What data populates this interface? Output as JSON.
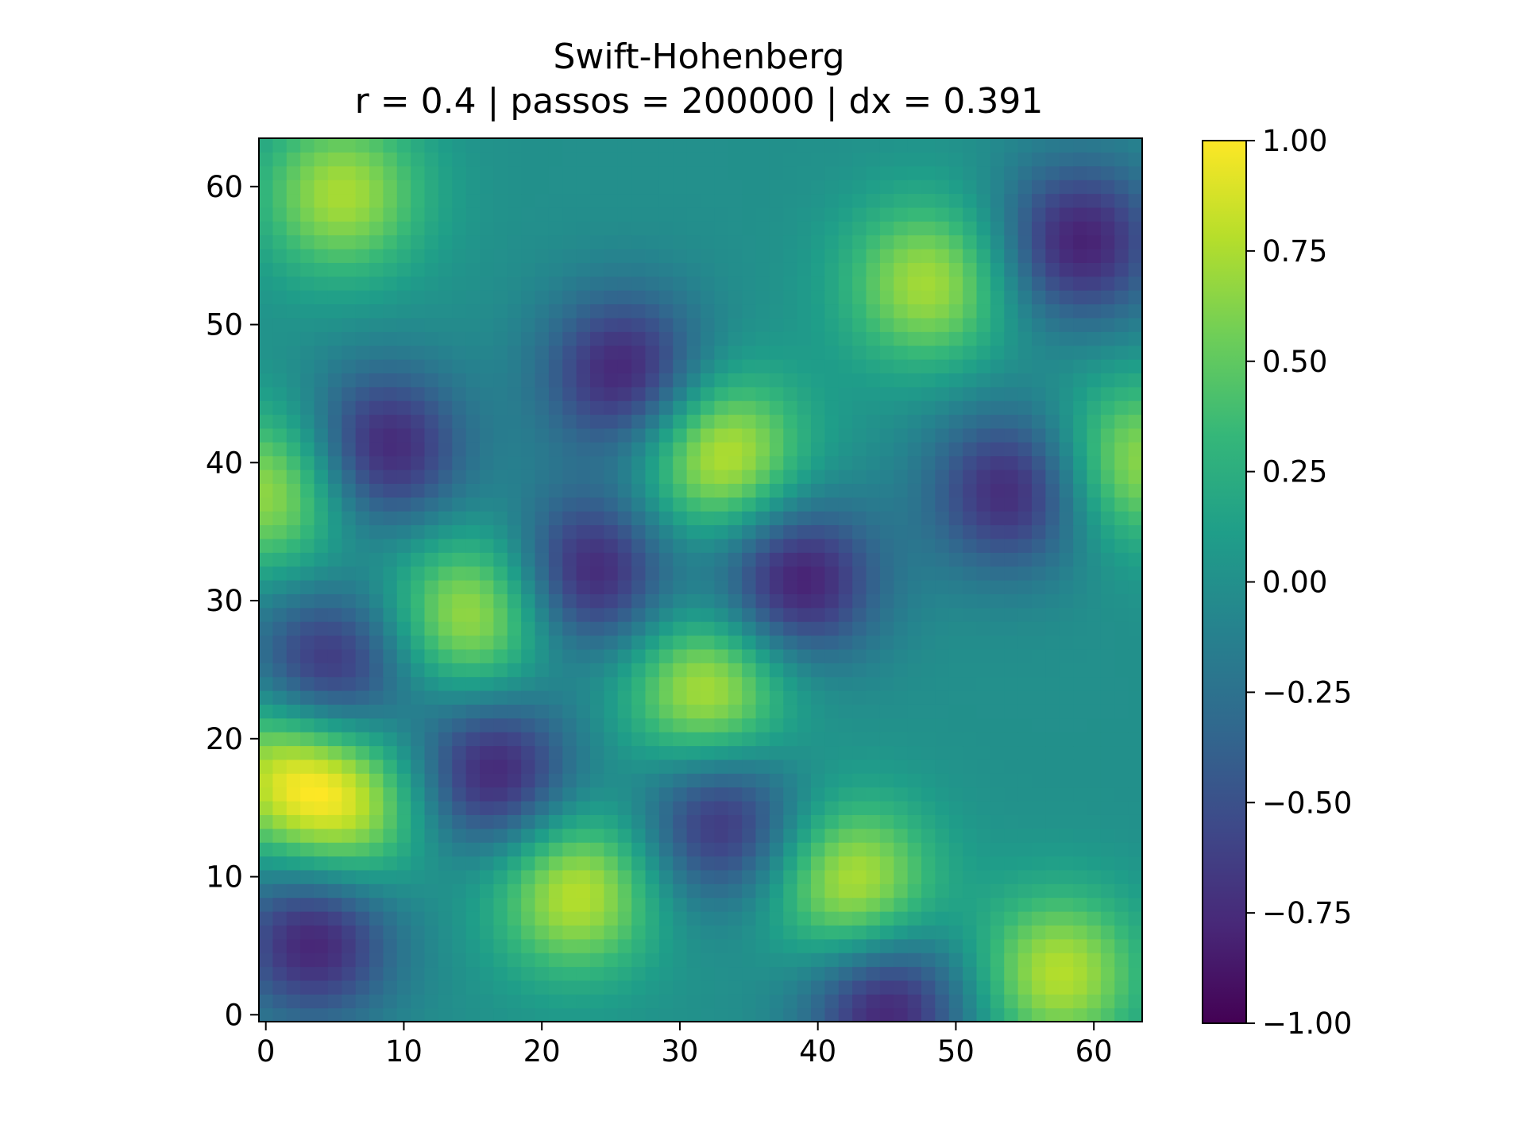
{
  "chart_data": {
    "type": "heatmap",
    "title": "Swift-Hohenberg",
    "subtitle": "r = 0.4 | passos = 200000 | dx = 0.391",
    "xlabel": "",
    "ylabel": "",
    "grid_size": [
      64,
      64
    ],
    "xlim": [
      -0.5,
      63.5
    ],
    "ylim": [
      -0.5,
      63.5
    ],
    "x_ticks": [
      0,
      10,
      20,
      30,
      40,
      50,
      60
    ],
    "x_tick_labels": [
      "0",
      "10",
      "20",
      "30",
      "40",
      "50",
      "60"
    ],
    "y_ticks": [
      0,
      10,
      20,
      30,
      40,
      50,
      60
    ],
    "y_tick_labels": [
      "0",
      "10",
      "20",
      "30",
      "40",
      "50",
      "60"
    ],
    "origin": "lower",
    "colormap": "viridis",
    "value_range": [
      -1.0,
      1.0
    ],
    "colorbar_ticks": [
      -1.0,
      -0.75,
      -0.5,
      -0.25,
      0.0,
      0.25,
      0.5,
      0.75,
      1.0
    ],
    "colorbar_tick_labels": [
      "−1.00",
      "−0.75",
      "−0.50",
      "−0.25",
      "0.00",
      "0.25",
      "0.50",
      "0.75",
      "1.00"
    ],
    "grid": false,
    "maxima": [
      {
        "x": 5.5,
        "y": 59.5,
        "value": 0.85
      },
      {
        "x": 48,
        "y": 53,
        "value": 0.85
      },
      {
        "x": 33,
        "y": 40.5,
        "value": 1.0
      },
      {
        "x": 0.5,
        "y": 38,
        "value": 0.85
      },
      {
        "x": 63,
        "y": 40,
        "value": 0.8
      },
      {
        "x": 15,
        "y": 29,
        "value": 0.9
      },
      {
        "x": 32,
        "y": 23.5,
        "value": 0.95
      },
      {
        "x": 22.5,
        "y": 9,
        "value": 0.95
      },
      {
        "x": 42.5,
        "y": 9.5,
        "value": 0.95
      },
      {
        "x": 57.5,
        "y": 3,
        "value": 0.9
      },
      {
        "x": 6,
        "y": 15,
        "value": 0.85
      },
      {
        "x": 1,
        "y": 18,
        "value": 0.8
      }
    ],
    "minima": [
      {
        "x": 3.5,
        "y": 5.5,
        "value": -0.95
      },
      {
        "x": 16.5,
        "y": 17.5,
        "value": -0.95
      },
      {
        "x": 33,
        "y": 14,
        "value": -0.85
      },
      {
        "x": 4.5,
        "y": 25,
        "value": -0.9
      },
      {
        "x": 23.5,
        "y": 32,
        "value": -0.95
      },
      {
        "x": 38.5,
        "y": 31.5,
        "value": -1.0
      },
      {
        "x": 8.5,
        "y": 41,
        "value": -0.95
      },
      {
        "x": 26,
        "y": 46.5,
        "value": -0.95
      },
      {
        "x": 45,
        "y": 0.5,
        "value": -0.95
      },
      {
        "x": 59,
        "y": 56,
        "value": -0.95
      },
      {
        "x": 54,
        "y": 38,
        "value": -0.9
      }
    ]
  }
}
